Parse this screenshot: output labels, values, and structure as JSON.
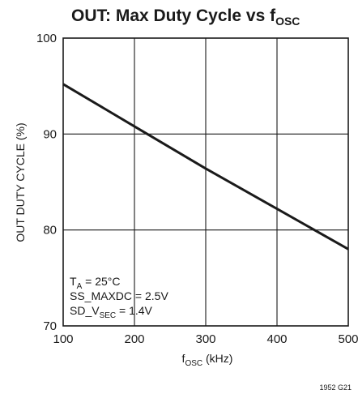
{
  "chart_data": {
    "type": "line",
    "title": {
      "main": "OUT: Max Duty Cycle vs f",
      "sub": "OSC"
    },
    "xlabel": {
      "symbol": "f",
      "sub": "OSC",
      "unit": " (kHz)"
    },
    "ylabel": "OUT DUTY CYCLE (%)",
    "xlim": [
      100,
      500
    ],
    "ylim": [
      70,
      100
    ],
    "x_ticks": [
      100,
      200,
      300,
      400,
      500
    ],
    "y_ticks": [
      70,
      80,
      90,
      100
    ],
    "grid": true,
    "series": [
      {
        "x": [
          100,
          200,
          300,
          400,
          500
        ],
        "y": [
          95.2,
          90.8,
          86.4,
          82.2,
          78.0
        ]
      }
    ],
    "annotations": [
      {
        "prefix": "T",
        "sub": "A",
        "suffix": " = 25°C"
      },
      {
        "prefix": "SS_MAXDC = 2.5V",
        "sub": "",
        "suffix": ""
      },
      {
        "prefix": "SD_V",
        "sub": "SEC",
        "suffix": " = 1.4V"
      }
    ],
    "figure_id": "1952 G21"
  }
}
